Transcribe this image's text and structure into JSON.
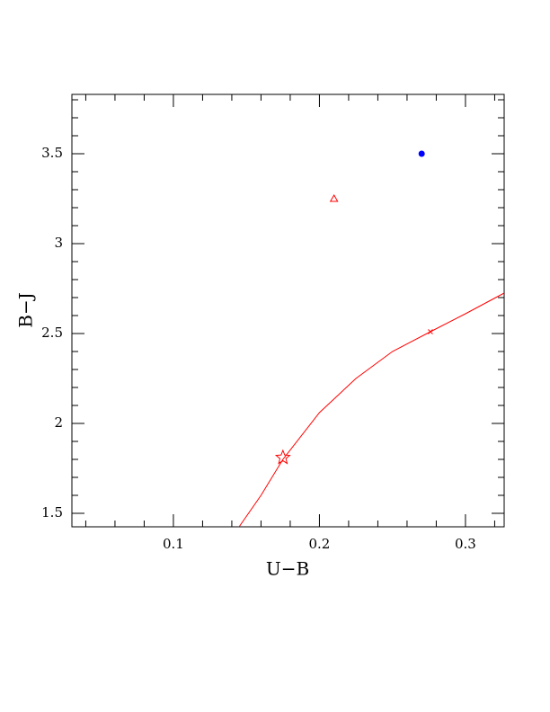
{
  "chart_data": {
    "type": "scatter",
    "xlabel": "U−B",
    "ylabel": "B−J",
    "xlim": [
      0.0305,
      0.3265
    ],
    "ylim": [
      1.425,
      3.83
    ],
    "xticks": [
      0.1,
      0.2,
      0.3
    ],
    "yticks": [
      1.5,
      2,
      2.5,
      3,
      3.5
    ],
    "xticks_minor": [
      0.04,
      0.06,
      0.08,
      0.12,
      0.14,
      0.16,
      0.18,
      0.22,
      0.24,
      0.26,
      0.28,
      0.32
    ],
    "yticks_minor": [
      1.6,
      1.7,
      1.8,
      1.9,
      2.1,
      2.2,
      2.3,
      2.4,
      2.6,
      2.7,
      2.8,
      2.9,
      3.1,
      3.2,
      3.3,
      3.4,
      3.6,
      3.7,
      3.8
    ],
    "series": [
      {
        "kind": "line",
        "color": "#ff0000",
        "x": [
          0.145,
          0.16,
          0.175,
          0.2,
          0.225,
          0.25,
          0.276,
          0.3,
          0.3265
        ],
        "values": [
          1.425,
          1.6,
          1.8,
          2.06,
          2.25,
          2.4,
          2.51,
          2.61,
          2.725
        ]
      },
      {
        "kind": "point",
        "marker": "star",
        "color": "#ff0000",
        "x": [
          0.175
        ],
        "values": [
          1.81
        ]
      },
      {
        "kind": "point",
        "marker": "cross",
        "color": "#ff0000",
        "x": [
          0.276
        ],
        "values": [
          2.51
        ]
      },
      {
        "kind": "point",
        "marker": "triangle",
        "color": "#ff0000",
        "x": [
          0.21
        ],
        "values": [
          3.25
        ]
      },
      {
        "kind": "point",
        "marker": "dot",
        "color": "#0000ff",
        "x": [
          0.27
        ],
        "values": [
          3.5
        ]
      }
    ]
  }
}
